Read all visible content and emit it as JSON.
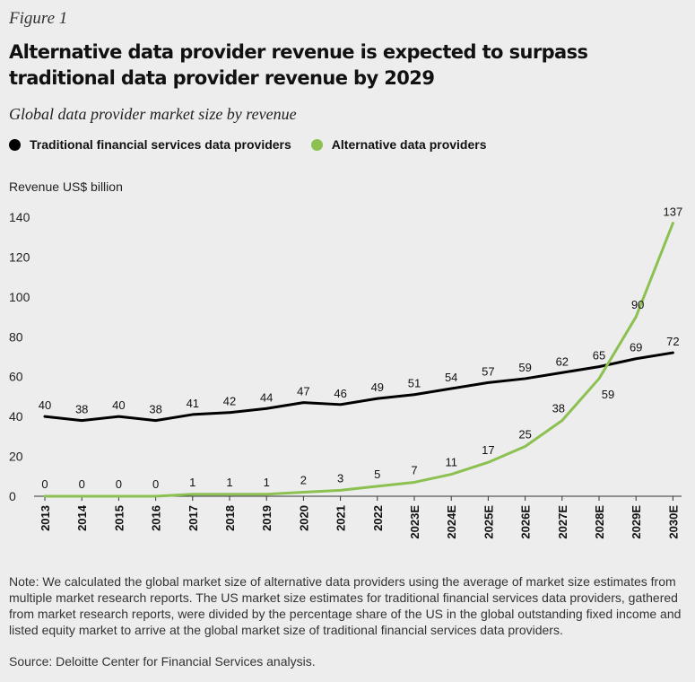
{
  "figure_label": "Figure 1",
  "title": "Alternative data provider revenue is expected to surpass traditional data provider revenue by 2029",
  "subtitle": "Global data provider market size by revenue",
  "note": "Note: We calculated the global market size of alternative data providers using the average of market size estimates from multiple market research reports. The US market size estimates for traditional financial services data providers, gathered from market research reports, were divided by the percentage share of the US in the global outstanding fixed income and listed equity market to arrive at the global market size of traditional financial services data providers.",
  "source": "Source: Deloitte Center for Financial Services analysis.",
  "chart_data": {
    "type": "line",
    "ylabel": "Revenue US$ billion",
    "ylim": [
      0,
      140
    ],
    "yticks": [
      0,
      20,
      40,
      60,
      80,
      100,
      120,
      140
    ],
    "grid": false,
    "legend_position": "top-left",
    "categories": [
      "2013",
      "2014",
      "2015",
      "2016",
      "2017",
      "2018",
      "2019",
      "2020",
      "2021",
      "2022",
      "2023E",
      "2024E",
      "2025E",
      "2026E",
      "2027E",
      "2028E",
      "2029E",
      "2030E"
    ],
    "series": [
      {
        "name": "Traditional financial services data providers",
        "color": "#000000",
        "values": [
          40,
          38,
          40,
          38,
          41,
          42,
          44,
          47,
          46,
          49,
          51,
          54,
          57,
          59,
          62,
          65,
          69,
          72
        ]
      },
      {
        "name": "Alternative data providers",
        "color": "#8cc152",
        "values": [
          0,
          0,
          0,
          0,
          1,
          1,
          1,
          2,
          3,
          5,
          7,
          11,
          17,
          25,
          38,
          59,
          90,
          137
        ]
      }
    ]
  }
}
